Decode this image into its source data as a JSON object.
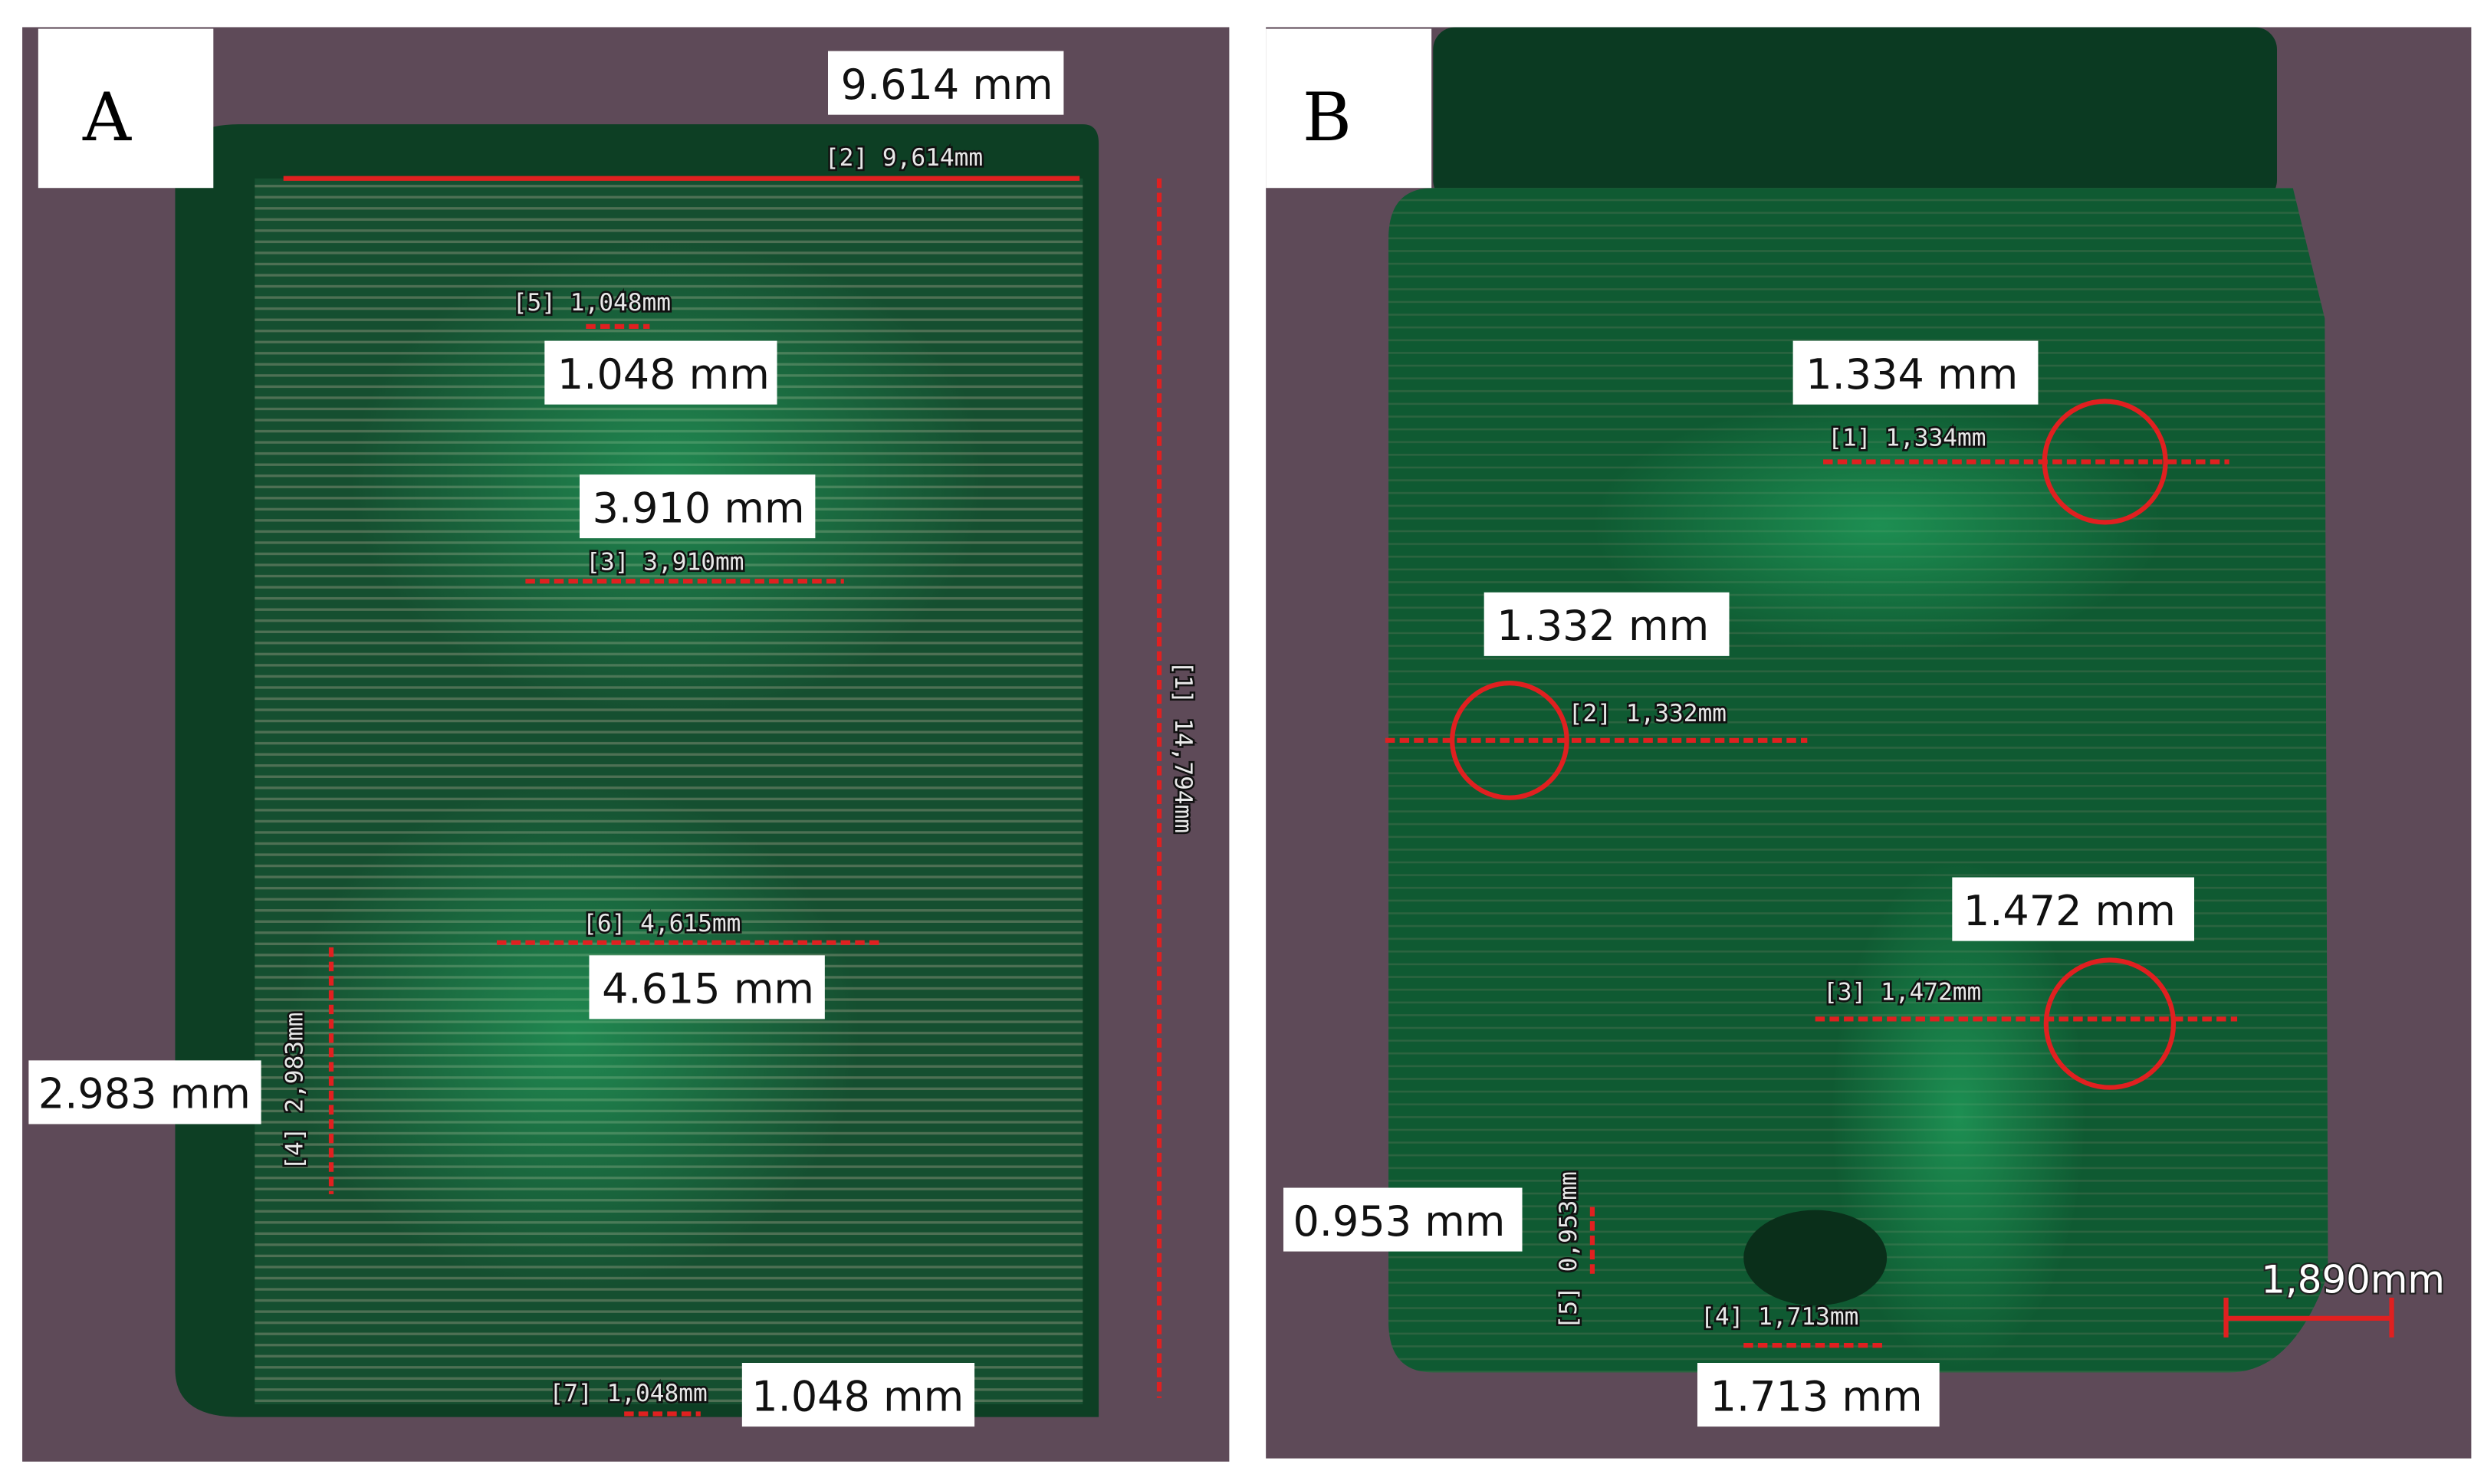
{
  "figure": {
    "panels": [
      {
        "label": "A",
        "callouts": [
          "9.614 mm",
          "1.048 mm",
          "3.910 mm",
          "4.615 mm",
          "2.983 mm",
          "1.048 mm"
        ],
        "software_labels": [
          "[2] 9,614mm",
          "[5] 1,048mm",
          "[3] 3,910mm",
          "[6] 4,615mm",
          "[4] 2,983mm",
          "[1] 14,794mm",
          "[7] 1,048mm"
        ]
      },
      {
        "label": "B",
        "callouts": [
          "1.334 mm",
          "1.332 mm",
          "1.472 mm",
          "0.953 mm",
          "1.713 mm"
        ],
        "software_labels": [
          "[1] 1,334mm",
          "[2] 1,332mm",
          "[3] 1,472mm",
          "[5] 0,953mm",
          "[4] 1,713mm"
        ],
        "scale_bar": "1,890mm"
      }
    ],
    "colors": {
      "background": "#5e4a58",
      "specimen": "#0f4a2a",
      "measure": "#e02020"
    }
  }
}
